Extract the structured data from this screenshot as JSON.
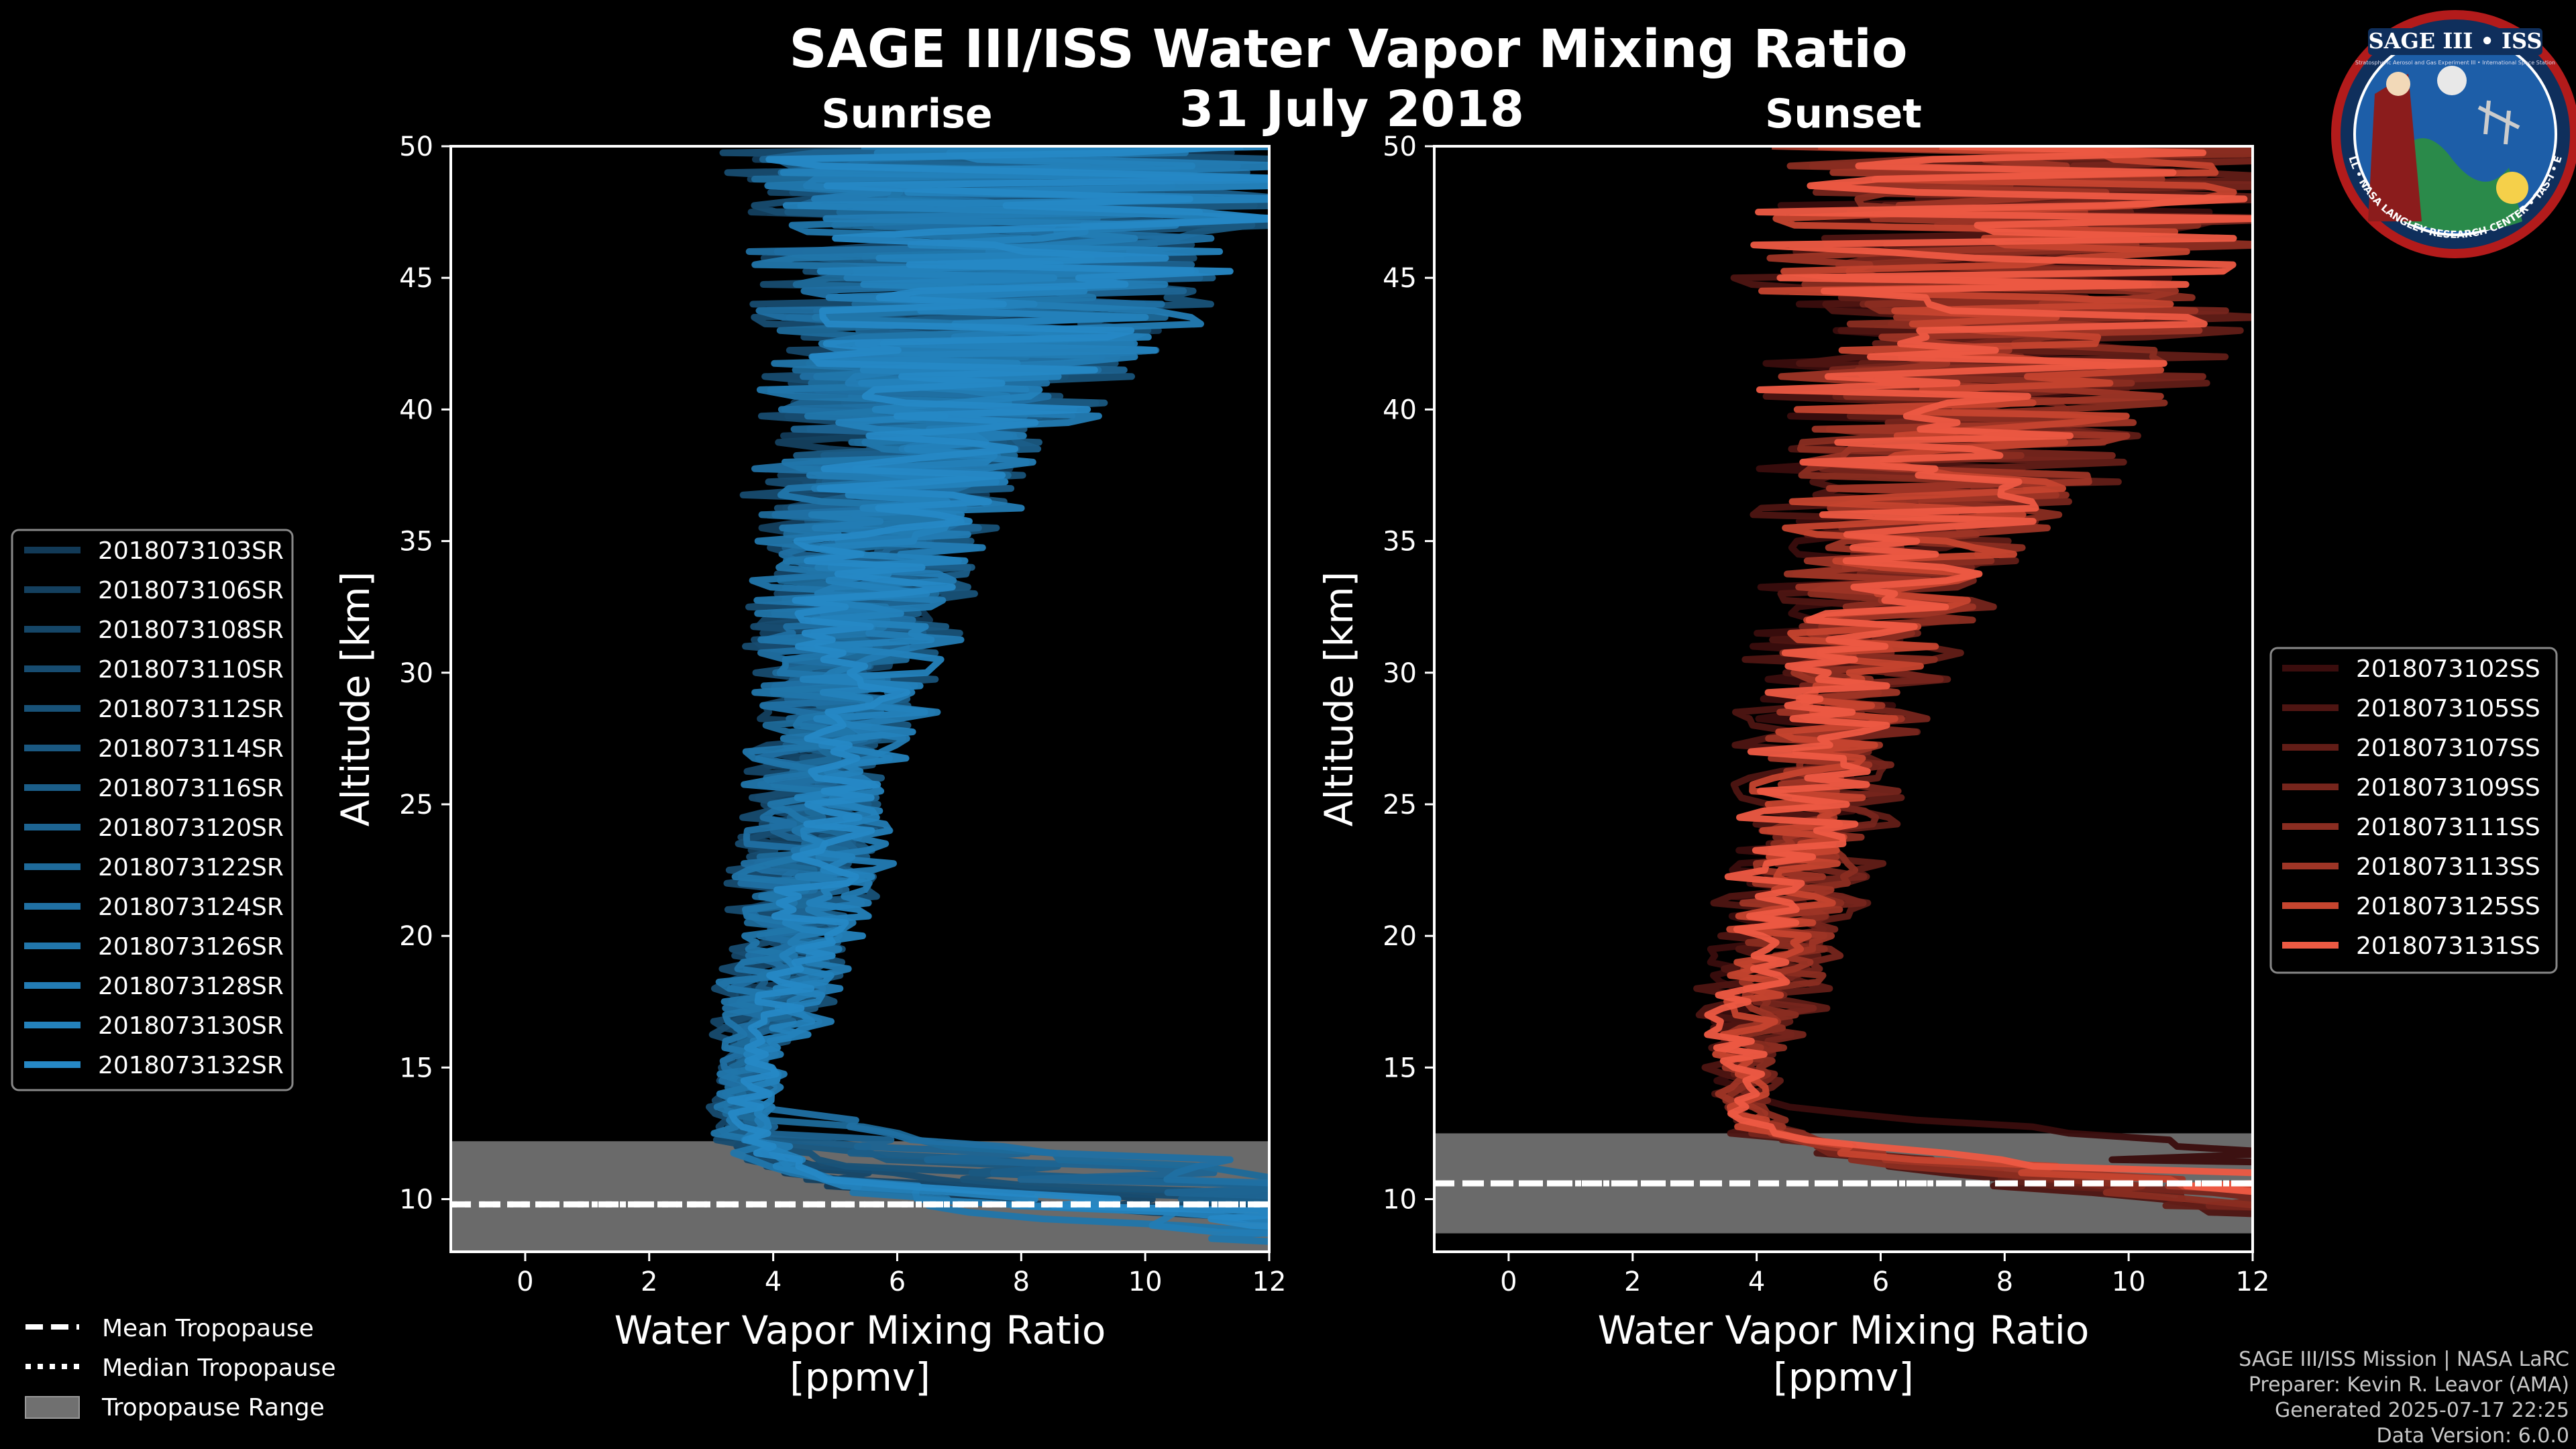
{
  "main_title": "SAGE III/ISS Water Vapor Mixing Ratio",
  "date_title": "31 July 2018",
  "logo": {
    "top_text": "SAGE III • ISS",
    "ring_text": "BALL • NASA LANGLEY RESEARCH CENTER • TAS-I • ESA",
    "small_text": "Stratospheric Aerosol and Gas Experiment III • International Space Station"
  },
  "credits": [
    "SAGE III/ISS Mission | NASA LaRC",
    "Preparer: Kevin R. Leavor (AMA)",
    "Generated 2025-07-17 22:25",
    "Data Version: 6.0.0"
  ],
  "tropopause_legend": [
    "Mean Tropopause",
    "Median Tropopause",
    "Tropopause Range"
  ],
  "colors": {
    "background": "#000000",
    "sunrise_series": [
      "#123a57",
      "#14405f",
      "#154667",
      "#174c70",
      "#185278",
      "#1a5881",
      "#1b5e89",
      "#1d6492",
      "#1e6a9a",
      "#2070a3",
      "#2176ab",
      "#237cb4",
      "#2482bc",
      "#2688c5"
    ],
    "sunset_series": [
      "#3a0d0d",
      "#4e1512",
      "#621d17",
      "#76251c",
      "#8a2d21",
      "#9e3526",
      "#c6452f",
      "#ee5a43"
    ],
    "tropopause_range": "#707070",
    "axes": "#ffffff"
  },
  "chart_data": [
    {
      "type": "line",
      "panel": "Sunrise",
      "title": "Sunrise",
      "xlabel": "Water Vapor Mixing Ratio\n[ppmv]",
      "ylabel": "Altitude [km]",
      "xlim": [
        -1.2,
        12
      ],
      "ylim": [
        8,
        50
      ],
      "xticks": [
        0,
        2,
        4,
        6,
        8,
        10,
        12
      ],
      "yticks": [
        10,
        15,
        20,
        25,
        30,
        35,
        40,
        45,
        50
      ],
      "profile_altitudes": [
        8.5,
        9.5,
        10.5,
        11.5,
        12.5,
        13.5,
        14.5,
        16,
        18,
        20,
        22.5,
        25,
        27.5,
        30,
        32.5,
        35,
        37.5,
        40,
        42.5,
        45,
        47.5,
        50
      ],
      "profile_mean": [
        9.5,
        7.5,
        5.5,
        4.0,
        3.5,
        3.5,
        3.6,
        3.8,
        4.1,
        4.4,
        4.6,
        4.8,
        5.0,
        5.2,
        5.4,
        5.6,
        6.0,
        6.6,
        7.2,
        7.6,
        8.0,
        8.2
      ],
      "profile_spread": [
        0.8,
        0.7,
        0.6,
        0.4,
        0.3,
        0.3,
        0.3,
        0.4,
        0.5,
        0.6,
        0.7,
        0.8,
        0.9,
        1.0,
        1.2,
        1.5,
        1.8,
        2.2,
        2.7,
        3.3,
        3.8,
        4.2
      ],
      "tropopause": {
        "mean": 9.8,
        "median": 9.8,
        "min": 8.0,
        "max": 12.2
      },
      "series": [
        {
          "name": "2018073103SR"
        },
        {
          "name": "2018073106SR"
        },
        {
          "name": "2018073108SR"
        },
        {
          "name": "2018073110SR"
        },
        {
          "name": "2018073112SR"
        },
        {
          "name": "2018073114SR"
        },
        {
          "name": "2018073116SR"
        },
        {
          "name": "2018073120SR"
        },
        {
          "name": "2018073122SR"
        },
        {
          "name": "2018073124SR"
        },
        {
          "name": "2018073126SR"
        },
        {
          "name": "2018073128SR"
        },
        {
          "name": "2018073130SR"
        },
        {
          "name": "2018073132SR"
        }
      ]
    },
    {
      "type": "line",
      "panel": "Sunset",
      "title": "Sunset",
      "xlabel": "Water Vapor Mixing Ratio\n[ppmv]",
      "ylabel": "Altitude [km]",
      "xlim": [
        -1.2,
        12
      ],
      "ylim": [
        8,
        50
      ],
      "xticks": [
        0,
        2,
        4,
        6,
        8,
        10,
        12
      ],
      "yticks": [
        10,
        15,
        20,
        25,
        30,
        35,
        40,
        45,
        50
      ],
      "profile_altitudes": [
        8.5,
        9.5,
        10.5,
        11.5,
        12.5,
        13.5,
        14.5,
        16,
        18,
        20,
        22.5,
        25,
        27.5,
        30,
        32.5,
        35,
        37.5,
        40,
        42.5,
        45,
        47.5,
        50
      ],
      "profile_mean": [
        11.0,
        10.0,
        8.0,
        6.0,
        4.2,
        3.8,
        3.8,
        3.9,
        4.1,
        4.4,
        4.7,
        5.0,
        5.2,
        5.5,
        5.9,
        6.4,
        6.9,
        7.4,
        7.8,
        8.1,
        8.3,
        8.4
      ],
      "profile_spread": [
        0.8,
        0.8,
        0.8,
        0.6,
        0.4,
        0.4,
        0.4,
        0.5,
        0.6,
        0.7,
        0.8,
        0.9,
        1.0,
        1.2,
        1.5,
        1.9,
        2.3,
        2.8,
        3.2,
        3.6,
        3.9,
        4.2
      ],
      "tropopause": {
        "mean": 10.6,
        "median": 10.6,
        "min": 8.7,
        "max": 12.5
      },
      "series": [
        {
          "name": "2018073102SS"
        },
        {
          "name": "2018073105SS"
        },
        {
          "name": "2018073107SS"
        },
        {
          "name": "2018073109SS"
        },
        {
          "name": "2018073111SS"
        },
        {
          "name": "2018073113SS"
        },
        {
          "name": "2018073125SS"
        },
        {
          "name": "2018073131SS"
        }
      ]
    }
  ]
}
